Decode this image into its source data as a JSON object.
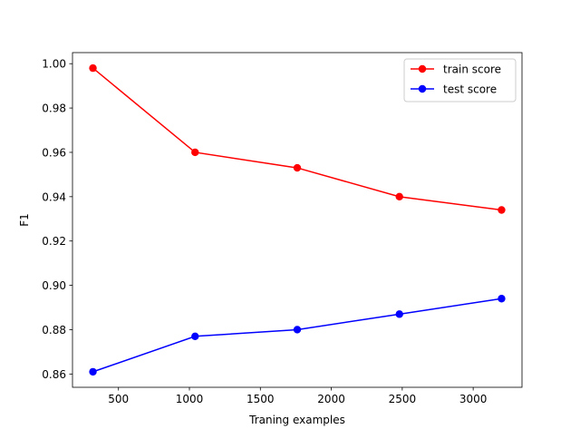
{
  "chart_data": {
    "type": "line",
    "title": "",
    "xlabel": "Traning examples",
    "ylabel": "F1",
    "x": [
      320,
      1040,
      1760,
      2480,
      3200
    ],
    "series": [
      {
        "name": "train score",
        "color": "#ff0000",
        "marker": "circle",
        "values": [
          0.998,
          0.96,
          0.953,
          0.94,
          0.934
        ]
      },
      {
        "name": "test score",
        "color": "#0000ff",
        "marker": "circle",
        "values": [
          0.861,
          0.877,
          0.88,
          0.887,
          0.894
        ]
      }
    ],
    "xlim": [
      176,
      3344
    ],
    "ylim": [
      0.854,
      1.005
    ],
    "xticks": [
      500,
      1000,
      1500,
      2000,
      2500,
      3000
    ],
    "xtick_labels": [
      "500",
      "1000",
      "1500",
      "2000",
      "2500",
      "3000"
    ],
    "yticks": [
      0.86,
      0.88,
      0.9,
      0.92,
      0.94,
      0.96,
      0.98,
      1.0
    ],
    "ytick_labels": [
      "0.86",
      "0.88",
      "0.90",
      "0.92",
      "0.94",
      "0.96",
      "0.98",
      "1.00"
    ],
    "legend_position": "upper right",
    "grid": false
  }
}
